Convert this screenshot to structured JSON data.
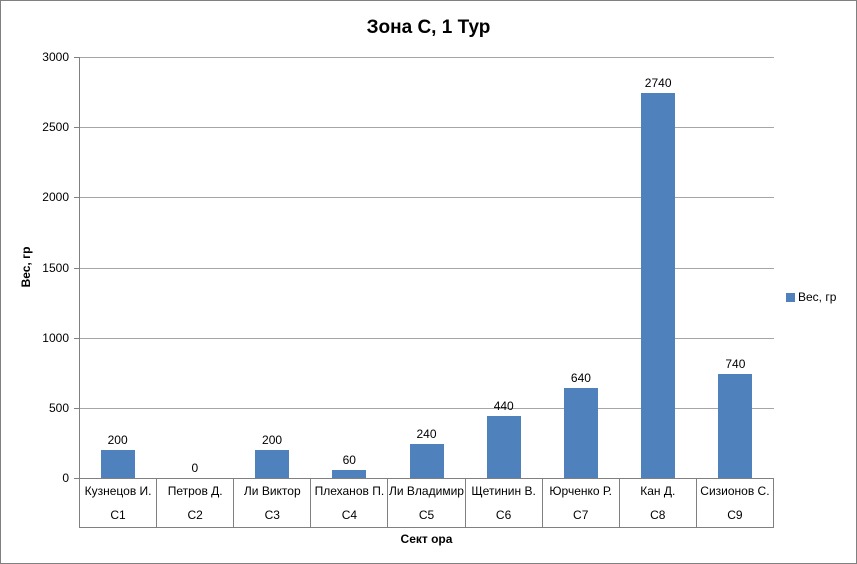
{
  "chart": {
    "border_color": "#808080",
    "background": "#ffffff",
    "gridline_color": "#a6a6a6",
    "axis_color": "#808080"
  },
  "chart_data": {
    "type": "bar",
    "title": "Зона C, 1 Тур",
    "xlabel": "Сект ора",
    "ylabel": "Вес, гр",
    "ylim": [
      0,
      3000
    ],
    "yticks": [
      0,
      500,
      1000,
      1500,
      2000,
      2500,
      3000
    ],
    "grid": true,
    "data_labels_visible": true,
    "legend": {
      "position": "right",
      "label": "Вес, гр"
    },
    "categories": [
      "Кузнецов И.",
      "Петров Д.",
      "Ли Виктор",
      "Плеханов П.",
      "Ли Владимир",
      "Щетинин В.",
      "Юрченко Р.",
      "Кан Д.",
      "Сизионов С."
    ],
    "sector_codes": [
      "C1",
      "C2",
      "C3",
      "C4",
      "C5",
      "C6",
      "C7",
      "C8",
      "C9"
    ],
    "series": [
      {
        "name": "Вес, гр",
        "color": "#4f81bd",
        "values": [
          200,
          0,
          200,
          60,
          240,
          440,
          640,
          2740,
          740
        ]
      }
    ]
  }
}
